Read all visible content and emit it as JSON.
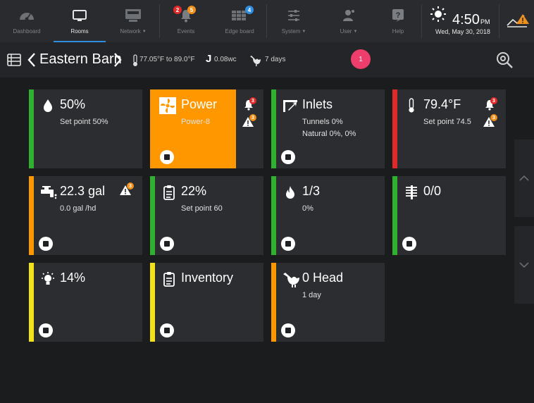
{
  "nav": {
    "items": [
      {
        "label": "Dashboard",
        "icon": "gauge-icon"
      },
      {
        "label": "Rooms",
        "icon": "monitor-icon"
      },
      {
        "label": "Network",
        "icon": "network-icon"
      },
      {
        "label": "Events",
        "icon": "bell-icon"
      },
      {
        "label": "Edge board",
        "icon": "edge-board-icon"
      },
      {
        "label": "System",
        "icon": "sliders-icon"
      },
      {
        "label": "User",
        "icon": "user-icon"
      },
      {
        "label": "Help",
        "icon": "help-icon"
      }
    ],
    "events_red_badge": "2",
    "events_orange_badge": "5",
    "edge_badge": "4",
    "active": "Rooms"
  },
  "clock": {
    "time": "4:50",
    "ampm": "PM",
    "date": "Wed, May 30, 2018"
  },
  "room": {
    "title": "Eastern Barn",
    "temperature_range": "77.05°F to 89.0°F",
    "pressure": "0.08wc",
    "age": "7 days",
    "alert_count": "1"
  },
  "tiles": [
    {
      "icon": "water-drop-icon",
      "value": "50%",
      "sub1": "Set point 50%",
      "sub2": "",
      "bar_color": "#2fb02f"
    },
    {
      "icon": "fan-icon",
      "value": "Power",
      "sub1": "Power-8",
      "sub2": "",
      "bar_color": "#ff9800",
      "bell_badge": "3",
      "warn_badge": "3"
    },
    {
      "icon": "inlet-icon",
      "value": "Inlets",
      "sub1": "Tunnels 0%",
      "sub2": "Natural 0%, 0%",
      "bar_color": "#2fb02f"
    },
    {
      "icon": "thermometer-icon",
      "value": "79.4°F",
      "sub1": "Set point 74.5",
      "sub2": "",
      "bar_color": "#e02a2a",
      "bell_badge": "3",
      "warn_badge": "3"
    },
    {
      "icon": "water-tap-icon",
      "value": "22.3 gal",
      "sub1": "0.0 gal /hd",
      "sub2": "",
      "bar_color": "#ff9800",
      "warn_badge": "3"
    },
    {
      "icon": "clipboard-icon",
      "value": "22%",
      "sub1": "Set point 60",
      "sub2": "",
      "bar_color": "#2fb02f"
    },
    {
      "icon": "flame-icon",
      "value": "1/3",
      "sub1": "0%",
      "sub2": "",
      "bar_color": "#2fb02f"
    },
    {
      "icon": "heater-icon",
      "value": "0/0",
      "sub1": "",
      "sub2": "",
      "bar_color": "#2fb02f"
    },
    {
      "icon": "light-bulb-icon",
      "value": "14%",
      "sub1": "",
      "sub2": "",
      "bar_color": "#f2e21a"
    },
    {
      "icon": "clipboard-icon",
      "value": "Inventory",
      "sub1": "",
      "sub2": "",
      "bar_color": "#f2e21a"
    },
    {
      "icon": "chicken-icon",
      "value": "0 Head",
      "sub1": "1 day",
      "sub2": "",
      "bar_color": "#ff9800"
    }
  ]
}
